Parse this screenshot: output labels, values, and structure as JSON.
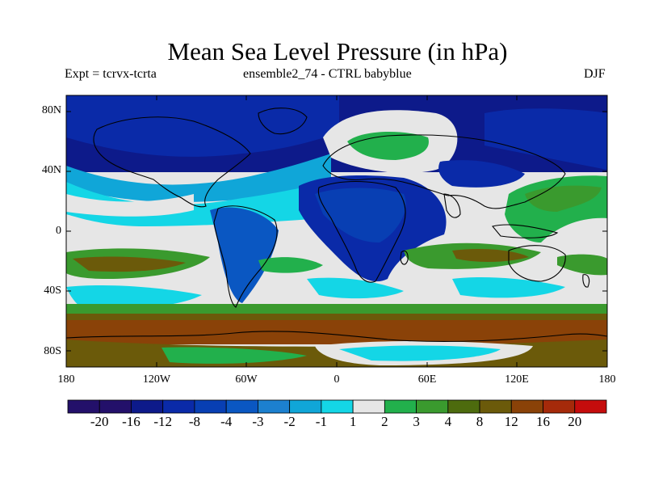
{
  "title": "Mean Sea Level Pressure (in hPa)",
  "subtitle_left": "Expt = tcrvx-tcrta",
  "subtitle_center": "ensemble2_74 - CTRL babyblue",
  "season": "DJF",
  "lat_ticks": [
    "80N",
    "40N",
    "0",
    "40S",
    "80S"
  ],
  "lon_ticks": [
    "180",
    "120W",
    "60W",
    "0",
    "60E",
    "120E",
    "180"
  ],
  "colorbar": {
    "labels": [
      "-20",
      "-16",
      "-12",
      "-8",
      "-4",
      "-3",
      "-2",
      "-1",
      "1",
      "2",
      "3",
      "4",
      "8",
      "12",
      "16",
      "20"
    ],
    "colors": [
      "#23106a",
      "#0d1a8a",
      "#0a2aa8",
      "#083fb3",
      "#0a57c2",
      "#1c80cf",
      "#10a6d8",
      "#14d6e6",
      "#e6e6e6",
      "#22b04c",
      "#3a9a2e",
      "#4d6b0e",
      "#6b5a0a",
      "#8a4208",
      "#a52a0a",
      "#c50c0c"
    ]
  },
  "map_colors": {
    "deep_low": "#0d1a8a",
    "low": "#0a57c2",
    "mid_low": "#1c80cf",
    "light_low": "#14d6e6",
    "neutral": "#e6e6e6",
    "weak_high": "#22b04c",
    "mid_high": "#3a9a2e",
    "high": "#6b5a0a",
    "strong_high": "#8a4208"
  }
}
